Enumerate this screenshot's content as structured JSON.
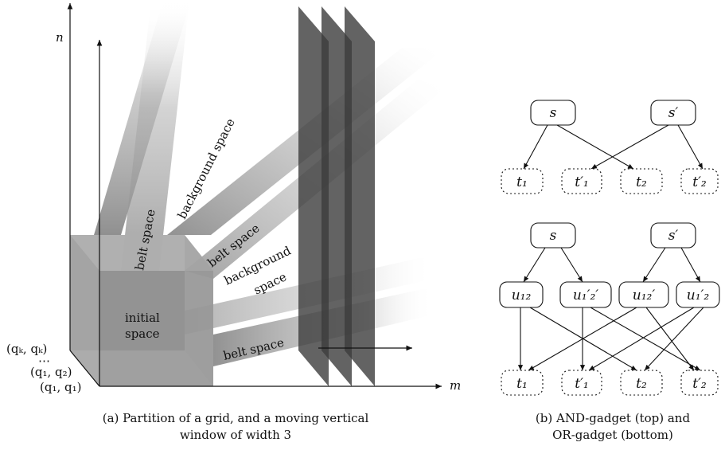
{
  "left_panel": {
    "axis_n": "n",
    "axis_m": "m",
    "corner_labels": [
      "(qₖ, qₖ)",
      "⋯",
      "(q₁, q₂)",
      "(q₁, q₁)"
    ],
    "initial_space_line1": "initial",
    "initial_space_line2": "space",
    "belt_space_1": "belt space",
    "belt_space_2": "belt space",
    "belt_space_3": "belt space",
    "background_space_1": "background space",
    "background_space_2_line1": "background",
    "background_space_2_line2": "space",
    "caption_line1": "(a) Partition of a grid, and a moving vertical",
    "caption_line2": "window of width 3"
  },
  "right_panel": {
    "and_gadget": {
      "top": [
        "s",
        "s′"
      ],
      "bottom": [
        "t₁",
        "t′₁",
        "t₂",
        "t′₂"
      ]
    },
    "or_gadget": {
      "top": [
        "s",
        "s′"
      ],
      "middle": [
        "u₁₂",
        "u₁′₂′",
        "u₁₂′",
        "u₁′₂"
      ],
      "bottom": [
        "t₁",
        "t′₁",
        "t₂",
        "t′₂"
      ]
    },
    "caption_line1": "(b) AND-gadget (top) and",
    "caption_line2": "OR-gadget (bottom)"
  }
}
